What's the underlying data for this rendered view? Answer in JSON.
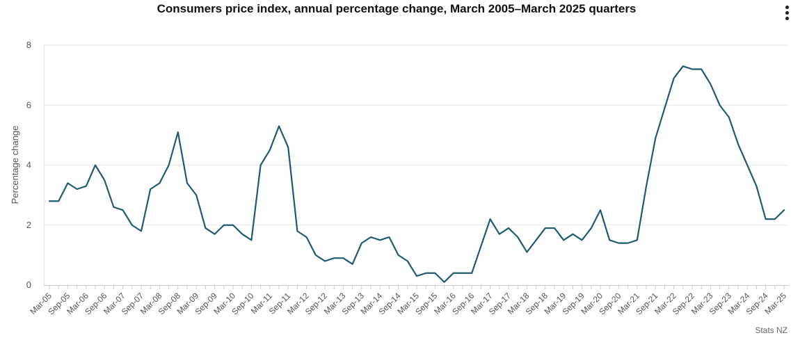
{
  "menu_icon": "vertical-ellipsis-icon",
  "credit": "Stats NZ",
  "colors": {
    "line": "#1f5a6e",
    "grid": "#e3e6ea",
    "axis": "#c8ccd2",
    "text": "#555555"
  },
  "chart_data": {
    "type": "line",
    "title": "Consumers price index, annual percentage change, March 2005–March 2025 quarters",
    "ylabel": "Percentage change",
    "xlabel": "",
    "ylim": [
      0,
      8
    ],
    "yticks": [
      0,
      2,
      4,
      6,
      8
    ],
    "grid": true,
    "x": [
      "Mar-05",
      "Jun-05",
      "Sep-05",
      "Dec-05",
      "Mar-06",
      "Jun-06",
      "Sep-06",
      "Dec-06",
      "Mar-07",
      "Jun-07",
      "Sep-07",
      "Dec-07",
      "Mar-08",
      "Jun-08",
      "Sep-08",
      "Dec-08",
      "Mar-09",
      "Jun-09",
      "Sep-09",
      "Dec-09",
      "Mar-10",
      "Jun-10",
      "Sep-10",
      "Dec-10",
      "Mar-11",
      "Jun-11",
      "Sep-11",
      "Dec-11",
      "Mar-12",
      "Jun-12",
      "Sep-12",
      "Dec-12",
      "Mar-13",
      "Jun-13",
      "Sep-13",
      "Dec-13",
      "Mar-14",
      "Jun-14",
      "Sep-14",
      "Dec-14",
      "Mar-15",
      "Jun-15",
      "Sep-15",
      "Dec-15",
      "Mar-16",
      "Jun-16",
      "Sep-16",
      "Dec-16",
      "Mar-17",
      "Jun-17",
      "Sep-17",
      "Dec-17",
      "Mar-18",
      "Jun-18",
      "Sep-18",
      "Dec-18",
      "Mar-19",
      "Jun-19",
      "Sep-19",
      "Dec-19",
      "Mar-20",
      "Jun-20",
      "Sep-20",
      "Dec-20",
      "Mar-21",
      "Jun-21",
      "Sep-21",
      "Dec-21",
      "Mar-22",
      "Jun-22",
      "Sep-22",
      "Dec-22",
      "Mar-23",
      "Jun-23",
      "Sep-23",
      "Dec-23",
      "Mar-24",
      "Jun-24",
      "Sep-24",
      "Dec-24",
      "Mar-25"
    ],
    "tick_labels": [
      "Mar-05",
      "Sep-05",
      "Mar-06",
      "Sep-06",
      "Mar-07",
      "Sep-07",
      "Mar-08",
      "Sep-08",
      "Mar-09",
      "Sep-09",
      "Mar-10",
      "Sep-10",
      "Mar-11",
      "Sep-11",
      "Mar-12",
      "Sep-12",
      "Mar-13",
      "Sep-13",
      "Mar-14",
      "Sep-14",
      "Mar-15",
      "Sep-15",
      "Mar-16",
      "Sep-16",
      "Mar-17",
      "Sep-17",
      "Mar-18",
      "Sep-18",
      "Mar-19",
      "Sep-19",
      "Mar-20",
      "Sep-20",
      "Mar-21",
      "Sep-21",
      "Mar-22",
      "Sep-22",
      "Mar-23",
      "Sep-23",
      "Mar-24",
      "Sep-24",
      "Mar-25"
    ],
    "series": [
      {
        "values": [
          2.8,
          2.8,
          3.4,
          3.2,
          3.3,
          4.0,
          3.5,
          2.6,
          2.5,
          2.0,
          1.8,
          3.2,
          3.4,
          4.0,
          5.1,
          3.4,
          3.0,
          1.9,
          1.7,
          2.0,
          2.0,
          1.7,
          1.5,
          4.0,
          4.5,
          5.3,
          4.6,
          1.8,
          1.6,
          1.0,
          0.8,
          0.9,
          0.9,
          0.7,
          1.4,
          1.6,
          1.5,
          1.6,
          1.0,
          0.8,
          0.3,
          0.4,
          0.4,
          0.1,
          0.4,
          0.4,
          0.4,
          1.3,
          2.2,
          1.7,
          1.9,
          1.6,
          1.1,
          1.5,
          1.9,
          1.9,
          1.5,
          1.7,
          1.5,
          1.9,
          2.5,
          1.5,
          1.4,
          1.4,
          1.5,
          3.3,
          4.9,
          5.9,
          6.9,
          7.3,
          7.2,
          7.2,
          6.7,
          6.0,
          5.6,
          4.7,
          4.0,
          3.3,
          2.2,
          2.2,
          2.5
        ]
      }
    ]
  }
}
